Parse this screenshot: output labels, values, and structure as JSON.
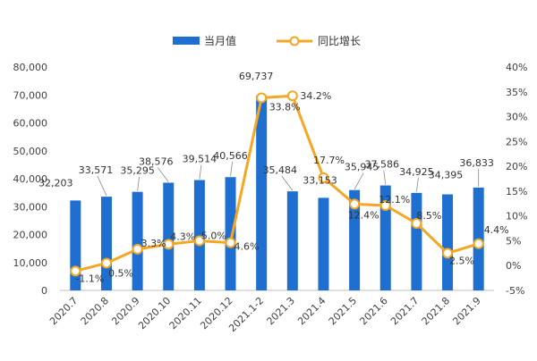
{
  "colors": {
    "bar": "#1f6fd1",
    "line": "#f5a623",
    "marker_fill": "#ffffff",
    "axis_text": "#404040",
    "leader": "#8a8a8a"
  },
  "legend": {
    "bar_label": "当月值",
    "line_label": "同比增长"
  },
  "chart_data": {
    "type": "bar",
    "categories": [
      "2020.7",
      "2020.8",
      "2020.9",
      "2020.10",
      "2020.11",
      "2020.12",
      "2021.1-2",
      "2021.3",
      "2021.4",
      "2021.5",
      "2021.6",
      "2021.7",
      "2021.8",
      "2021.9"
    ],
    "bar_labels": [
      "32,203",
      "33,571",
      "35,295",
      "38,576",
      "39,514",
      "40,566",
      "69,737",
      "35,484",
      "33,153",
      "35,945",
      "37,586",
      "34,925",
      "34,395",
      "36,833"
    ],
    "line_labels": [
      "-1.1%",
      "0.5%",
      "3.3%",
      "4.3%",
      "5.0%",
      "4.6%",
      "33.8%",
      "34.2%",
      "17.7%",
      "12.4%",
      "12.1%",
      "8.5%",
      "2.5%",
      "4.4%"
    ],
    "series": [
      {
        "name": "当月值",
        "type": "bar",
        "axis": "left",
        "values": [
          32203,
          33571,
          35295,
          38576,
          39514,
          40566,
          69737,
          35484,
          33153,
          35945,
          37586,
          34925,
          34395,
          36833
        ]
      },
      {
        "name": "同比增长",
        "type": "line",
        "axis": "right",
        "values": [
          -1.1,
          0.5,
          3.3,
          4.3,
          5.0,
          4.6,
          33.8,
          34.2,
          17.7,
          12.4,
          12.1,
          8.5,
          2.5,
          4.4
        ]
      }
    ],
    "y_left": {
      "min": 0,
      "max": 80000,
      "ticks": [
        "0",
        "10,000",
        "20,000",
        "30,000",
        "40,000",
        "50,000",
        "60,000",
        "70,000",
        "80,000"
      ]
    },
    "y_right": {
      "min": -5,
      "max": 40,
      "ticks": [
        "-5%",
        "0%",
        "5%",
        "10%",
        "15%",
        "20%",
        "25%",
        "30%",
        "35%",
        "40%"
      ]
    },
    "grid": false,
    "legend_position": "top-center"
  }
}
